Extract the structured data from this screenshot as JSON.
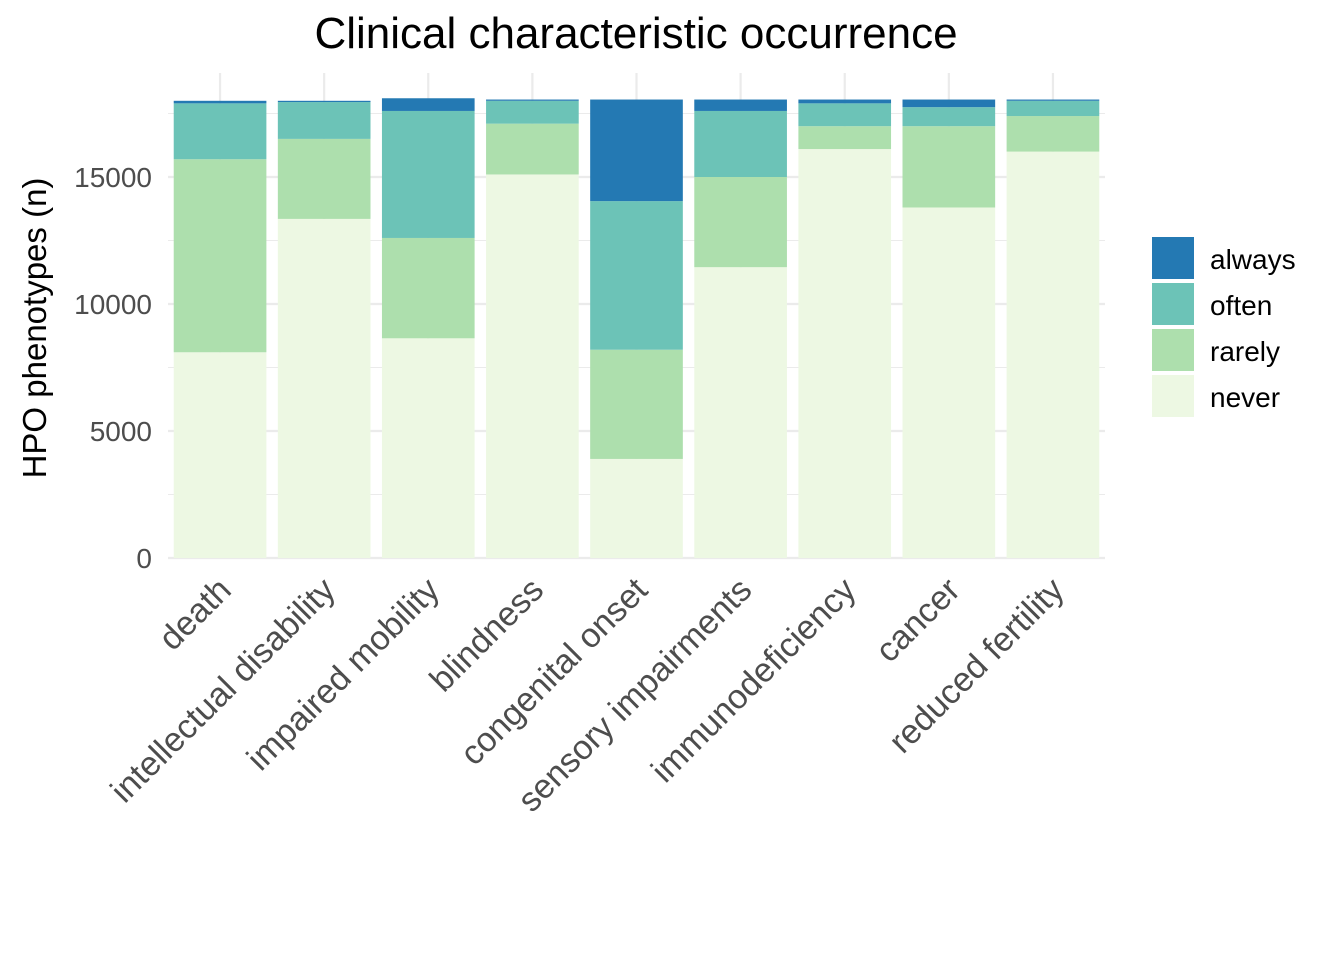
{
  "chart_data": {
    "type": "bar",
    "stacked": true,
    "title": "Clinical characteristic occurrence",
    "xlabel": "",
    "ylabel": "HPO phenotypes (n)",
    "ylim": [
      0,
      18200
    ],
    "yticks": [
      0,
      5000,
      10000,
      15000
    ],
    "grid": true,
    "legend_position": "right",
    "categories": [
      "death",
      "intellectual disability",
      "impaired mobility",
      "blindness",
      "congenital onset",
      "sensory impairments",
      "immunodeficiency",
      "cancer",
      "reduced fertility"
    ],
    "series": [
      {
        "name": "never",
        "color": "#edf8e3",
        "values": [
          8100,
          13350,
          8650,
          15100,
          3900,
          11450,
          16100,
          13800,
          16000
        ]
      },
      {
        "name": "rarely",
        "color": "#addfad",
        "values": [
          7600,
          3150,
          3950,
          2000,
          4300,
          3550,
          900,
          3200,
          1400
        ]
      },
      {
        "name": "often",
        "color": "#6cc3b7",
        "values": [
          2200,
          1450,
          5000,
          900,
          5850,
          2600,
          900,
          750,
          600
        ]
      },
      {
        "name": "always",
        "color": "#2479b3",
        "values": [
          100,
          50,
          500,
          50,
          4000,
          450,
          150,
          300,
          50
        ]
      }
    ],
    "legend_order": [
      "always",
      "often",
      "rarely",
      "never"
    ]
  }
}
